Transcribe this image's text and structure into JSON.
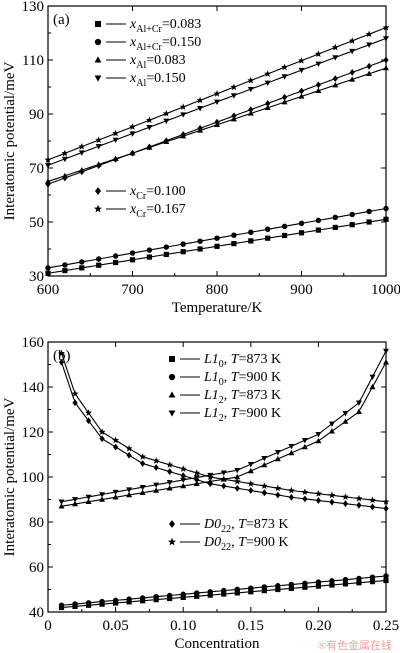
{
  "watermark": "®有色金属在线",
  "chart_data": [
    {
      "type": "line",
      "panel_label": "(a)",
      "xlabel": "Temperature/K",
      "ylabel": "Interatomic potential/meV",
      "xlim": [
        600,
        1000
      ],
      "ylim": [
        30,
        130
      ],
      "xticks": [
        600,
        700,
        800,
        900,
        1000
      ],
      "yticks": [
        30,
        50,
        70,
        90,
        110,
        130
      ],
      "legend_groups": [
        {
          "position": "top-left",
          "series": [
            0,
            1,
            2,
            3
          ]
        },
        {
          "position": "middle-left",
          "series": [
            4,
            5
          ]
        }
      ],
      "x": [
        600,
        1000
      ],
      "series": [
        {
          "name": "x_Al+Cr=0.083",
          "label_sym": "x",
          "label_sub": "Al+Cr",
          "label_rest": "=0.083",
          "marker": "square",
          "values": [
            31,
            51
          ]
        },
        {
          "name": "x_Al+Cr=0.150",
          "label_sym": "x",
          "label_sub": "Al+Cr",
          "label_rest": "=0.150",
          "marker": "circle",
          "values": [
            33,
            55
          ]
        },
        {
          "name": "x_Al=0.083",
          "label_sym": "x",
          "label_sub": "Al",
          "label_rest": "=0.083",
          "marker": "triangle-up",
          "values": [
            65,
            107
          ]
        },
        {
          "name": "x_Al=0.150",
          "label_sym": "x",
          "label_sub": "Al",
          "label_rest": "=0.150",
          "marker": "triangle-down",
          "values": [
            71,
            118
          ]
        },
        {
          "name": "x_Cr=0.100",
          "label_sym": "x",
          "label_sub": "Cr",
          "label_rest": "=0.100",
          "marker": "diamond",
          "values": [
            64,
            110
          ]
        },
        {
          "name": "x_Cr=0.167",
          "label_sym": "x",
          "label_sub": "Cr",
          "label_rest": "=0.167",
          "marker": "star",
          "values": [
            73,
            122
          ]
        }
      ]
    },
    {
      "type": "line",
      "panel_label": "(b)",
      "xlabel": "Concentration",
      "ylabel": "Interatomic potential/meV",
      "xlim": [
        0,
        0.25
      ],
      "ylim": [
        40,
        160
      ],
      "xticks": [
        0,
        0.05,
        0.1,
        0.15,
        0.2,
        0.25
      ],
      "xtick_labels": [
        "0",
        "0.05",
        "0.10",
        "0.15",
        "0.20",
        "0.25"
      ],
      "yticks": [
        40,
        60,
        80,
        100,
        120,
        140,
        160
      ],
      "legend_groups": [
        {
          "position": "top-right",
          "series": [
            0,
            1,
            2,
            3
          ]
        },
        {
          "position": "lower-middle",
          "series": [
            4,
            5
          ]
        }
      ],
      "series": [
        {
          "name": "L1_0, T=873 K",
          "label_main": "L1",
          "label_sub": "0",
          "label_rest": ", T=873 K",
          "marker": "square",
          "x": [
            0.01,
            0.25
          ],
          "values": [
            42,
            54
          ]
        },
        {
          "name": "L1_0, T=900 K",
          "label_main": "L1",
          "label_sub": "0",
          "label_rest": ", T=900 K",
          "marker": "circle",
          "x": [
            0.01,
            0.25
          ],
          "values": [
            43,
            56
          ]
        },
        {
          "name": "L1_2, T=873 K",
          "label_main": "L1",
          "label_sub": "2",
          "label_rest": ", T=873 K",
          "marker": "triangle-up",
          "x": [
            0.01,
            0.14,
            0.2,
            0.23,
            0.25
          ],
          "values": [
            87,
            100,
            116,
            129,
            151
          ]
        },
        {
          "name": "L1_2, T=900 K",
          "label_main": "L1",
          "label_sub": "2",
          "label_rest": ", T=900 K",
          "marker": "triangle-down",
          "x": [
            0.01,
            0.14,
            0.2,
            0.23,
            0.25
          ],
          "values": [
            89,
            103,
            119,
            133,
            156
          ]
        },
        {
          "name": "D0_22, T=873 K",
          "label_main": "D0",
          "label_sub": "22",
          "label_rest": ", T=873 K",
          "marker": "diamond",
          "x": [
            0.01,
            0.02,
            0.04,
            0.07,
            0.12,
            0.18,
            0.25
          ],
          "values": [
            151,
            133,
            117,
            106,
            97,
            91,
            86
          ]
        },
        {
          "name": "D0_22, T=900 K",
          "label_main": "D0",
          "label_sub": "22",
          "label_rest": ", T=900 K",
          "marker": "star",
          "x": [
            0.01,
            0.02,
            0.04,
            0.07,
            0.12,
            0.18,
            0.25
          ],
          "values": [
            155,
            137,
            120,
            109,
            100,
            94,
            89
          ]
        }
      ]
    }
  ]
}
